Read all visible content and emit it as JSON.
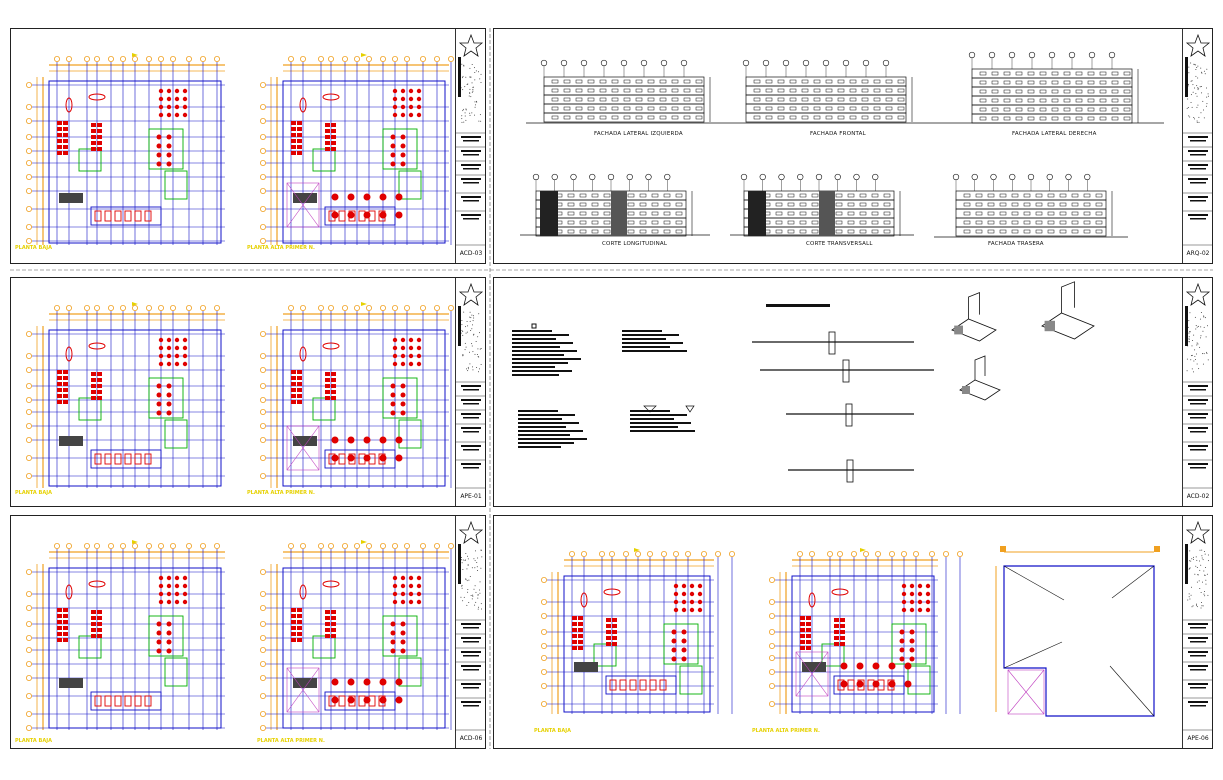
{
  "sheets": [
    {
      "code": "ACD-03",
      "plan_labels": [
        "PLANTA BAJA",
        "PLANTA ALTA PRIMER N."
      ]
    },
    {
      "code": "ARQ-02",
      "elevations": [
        "FACHADA LATERAL IZQUIERDA",
        "FACHADA FRONTAL",
        "FACHADA LATERAL DERECHA",
        "CORTE LONGITUDINAL",
        "CORTE TRANSVERSALL",
        "FACHADA TRASERA"
      ]
    },
    {
      "code": "APE-01",
      "plan_labels": [
        "PLANTA BAJA",
        "PLANTA ALTA PRIMER N."
      ]
    },
    {
      "code": "ACD-02"
    },
    {
      "code": "ACD-06",
      "plan_labels": [
        "PLANTA BAJA",
        "PLANTA ALTA PRIMER N."
      ]
    },
    {
      "code": "APE-06",
      "plan_labels": [
        "PLANTA BAJA",
        "PLANTA ALTA PRIMER N."
      ]
    }
  ],
  "colors": {
    "grid": "#1010c8",
    "dim": "#f0a020",
    "furniture": "#e00000",
    "wall": "#1010c8",
    "partition": "#00b000",
    "label": "#e6d100",
    "hatch": "#c040c0"
  }
}
